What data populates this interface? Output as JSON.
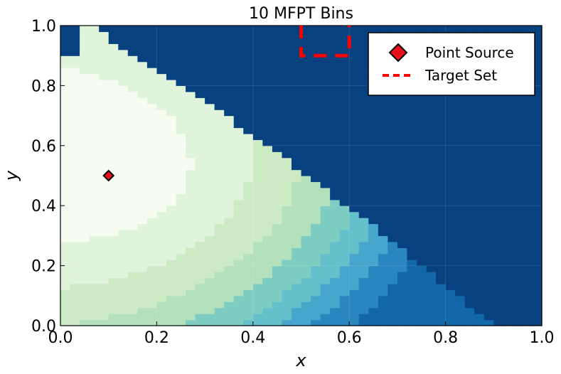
{
  "chart_data": {
    "type": "heatmap",
    "title": "10 MFPT Bins",
    "xlabel": "x",
    "ylabel": "y",
    "xlim": [
      0.0,
      1.0
    ],
    "ylim": [
      0.0,
      1.0
    ],
    "xticks": [
      "0.0",
      "0.2",
      "0.4",
      "0.6",
      "0.8",
      "1.0"
    ],
    "yticks": [
      "0.0",
      "0.2",
      "0.4",
      "0.6",
      "0.8",
      "1.0"
    ],
    "grid": true,
    "legend_position": "top-right",
    "legend": [
      {
        "label": "Point Source",
        "marker": "diamond",
        "color": "#e8101a"
      },
      {
        "label": "Target Set",
        "style": "dashed-line",
        "color": "#ff0000"
      }
    ],
    "point_source": {
      "x": 0.1,
      "y": 0.5
    },
    "target_set": {
      "x": [
        0.5,
        0.6
      ],
      "y": [
        0.9,
        1.0
      ]
    },
    "bins": 10,
    "colors": [
      "#f7fcf0",
      "#e0f3db",
      "#ccebc5",
      "#b3e1bb",
      "#7ecdc2",
      "#64c0cb",
      "#46a6cc",
      "#2a86bf",
      "#1368aa",
      "#08417f"
    ],
    "region_boundary_comment": "Non-blue region lies below the staircase boundary; top-left corner region also blue."
  }
}
